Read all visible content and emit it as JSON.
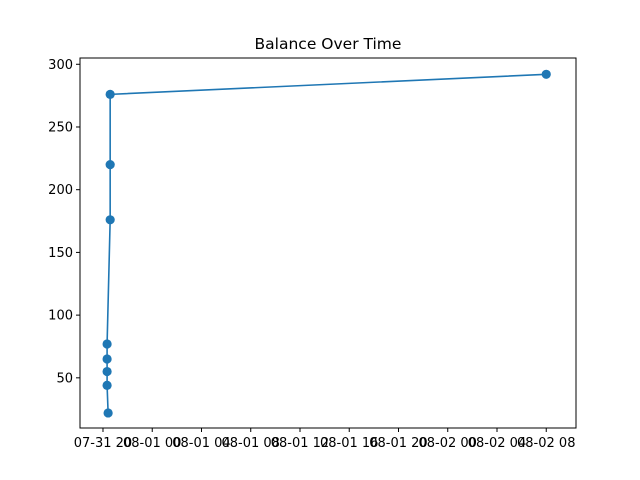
{
  "chart_data": {
    "type": "line",
    "title": "Balance Over Time",
    "xlabel": "",
    "ylabel": "",
    "series": [
      {
        "color": "#1f77b4",
        "marker": "circle",
        "points": [
          {
            "x": "07-31 20:25",
            "y": 22
          },
          {
            "x": "07-31 20:20",
            "y": 44
          },
          {
            "x": "07-31 20:20",
            "y": 55
          },
          {
            "x": "07-31 20:20",
            "y": 65
          },
          {
            "x": "07-31 20:20",
            "y": 77
          },
          {
            "x": "07-31 20:35",
            "y": 176
          },
          {
            "x": "07-31 20:35",
            "y": 220
          },
          {
            "x": "07-31 20:35",
            "y": 276
          },
          {
            "x": "08-02 08:00",
            "y": 292
          }
        ]
      }
    ],
    "x_ticks": [
      "07-31 20",
      "08-01 00",
      "08-01 04",
      "08-01 08",
      "08-01 12",
      "08-01 16",
      "08-01 20",
      "08-02 00",
      "08-02 04",
      "08-02 08"
    ],
    "y_ticks": [
      50,
      100,
      150,
      200,
      250,
      300
    ],
    "ylim": [
      10,
      305
    ],
    "xlim": [
      "07-31 18:08",
      "08-02 10:25"
    ],
    "grid": false,
    "legend": "none"
  }
}
